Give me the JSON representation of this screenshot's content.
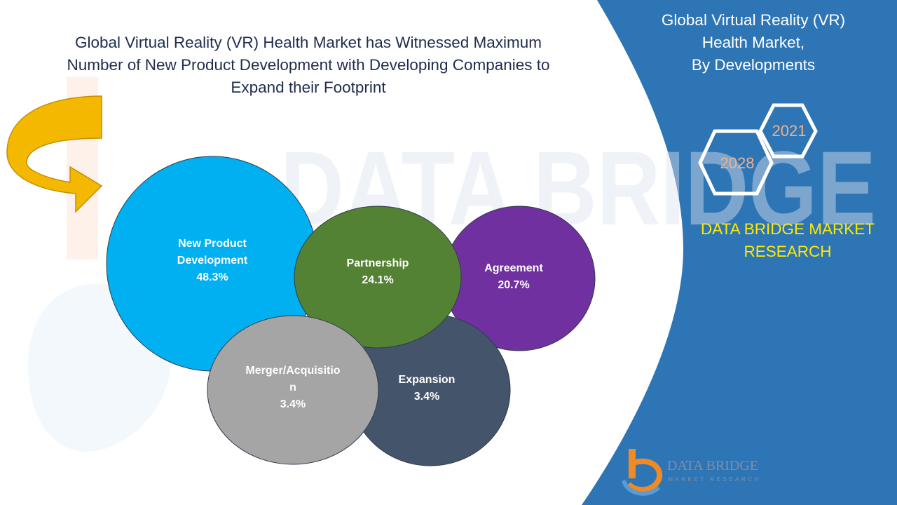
{
  "title": {
    "lines": [
      "Global Virtual Reality (VR) Health Market has Witnessed Maximum",
      "Number of New Product Development with Developing Companies to",
      "Expand their Footprint"
    ]
  },
  "panel": {
    "title_lines": [
      "Global Virtual Reality (VR)",
      "Health Market,",
      "By Developments"
    ],
    "years": [
      "2021",
      "2028"
    ],
    "brand_lines": [
      "DATA BRIDGE MARKET",
      "RESEARCH"
    ],
    "logo": {
      "name": "DATA BRIDGE",
      "tagline": "MARKET RESEARCH"
    }
  },
  "colors": {
    "panel_blue": "#2e75b6",
    "arrow_gold": "#f5b800",
    "brand_yellow": "#ffea00",
    "year_text": "#f4b183",
    "watermark": "#dde3ec"
  },
  "chart_data": {
    "type": "bubble",
    "series": [
      {
        "label_lines": [
          "New Product",
          "Development"
        ],
        "value": "48.3%",
        "color": "#00b0f0"
      },
      {
        "label_lines": [
          "Partnership"
        ],
        "value": "24.1%",
        "color": "#548235"
      },
      {
        "label_lines": [
          "Agreement"
        ],
        "value": "20.7%",
        "color": "#7030a0"
      },
      {
        "label_lines": [
          "Expansion"
        ],
        "value": "3.4%",
        "color": "#44546a"
      },
      {
        "label_lines": [
          "Merger/Acquisitio",
          "n"
        ],
        "value": "3.4%",
        "color": "#a5a5a5"
      }
    ]
  }
}
